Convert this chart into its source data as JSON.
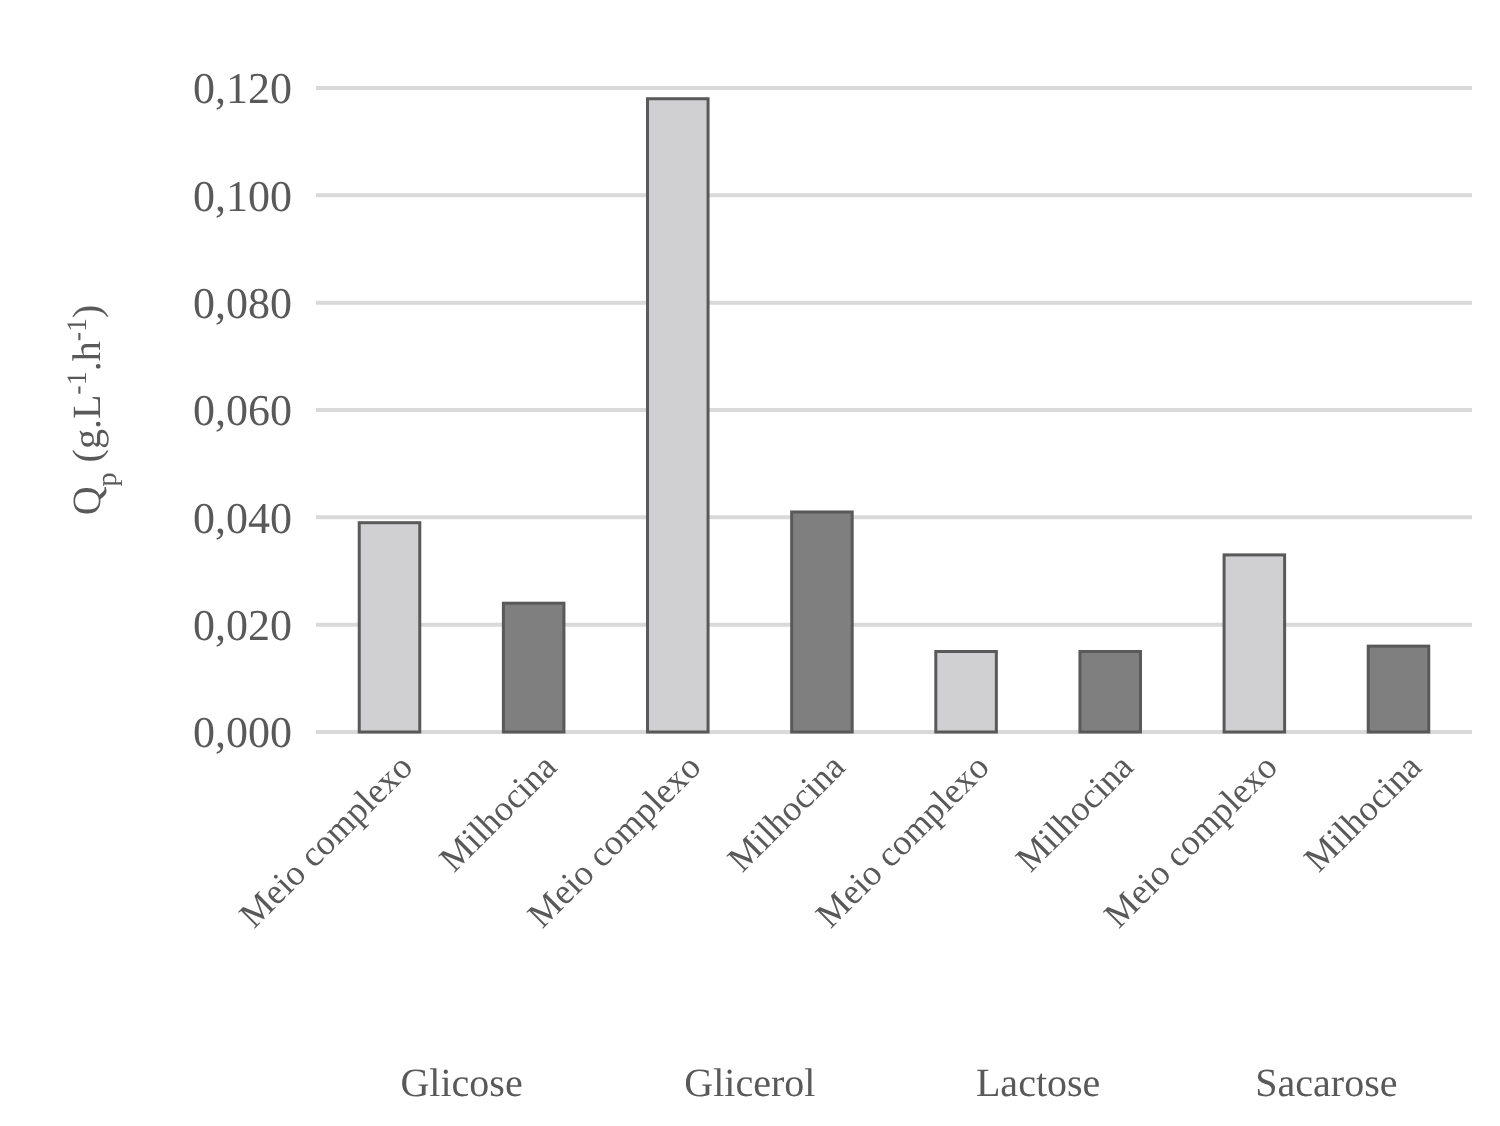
{
  "chart_data": {
    "type": "bar",
    "ylabel": "Q$_{p}$ (g.L$^{-1}$.h$^{-1}$)",
    "categories": [
      "Meio complexo",
      "Milhocina",
      "Meio complexo",
      "Milhocina",
      "Meio complexo",
      "Milhocina",
      "Meio complexo",
      "Milhocina"
    ],
    "values": [
      0.039,
      0.024,
      0.118,
      0.041,
      0.015,
      0.015,
      0.033,
      0.016
    ],
    "colors": [
      "#d0cfd1",
      "#7f7f7f",
      "#d0cfd1",
      "#7f7f7f",
      "#d0cfd1",
      "#7f7f7f",
      "#d0cfd1",
      "#7f7f7f"
    ],
    "ylim": [
      0,
      0.12
    ],
    "yticks": [
      {
        "value": 0,
        "label": "0,000"
      },
      {
        "value": 0.02,
        "label": "0,020"
      },
      {
        "value": 0.04,
        "label": "0,040"
      },
      {
        "value": 0.06,
        "label": "0,060"
      },
      {
        "value": 0.08,
        "label": "0,080"
      },
      {
        "value": 0.1,
        "label": "0,100"
      },
      {
        "value": 0.12,
        "label": "0,120"
      }
    ],
    "grid": "y",
    "annotations": [
      "Glicose",
      "Glicerol",
      "Lactose",
      "Sacarose"
    ]
  }
}
